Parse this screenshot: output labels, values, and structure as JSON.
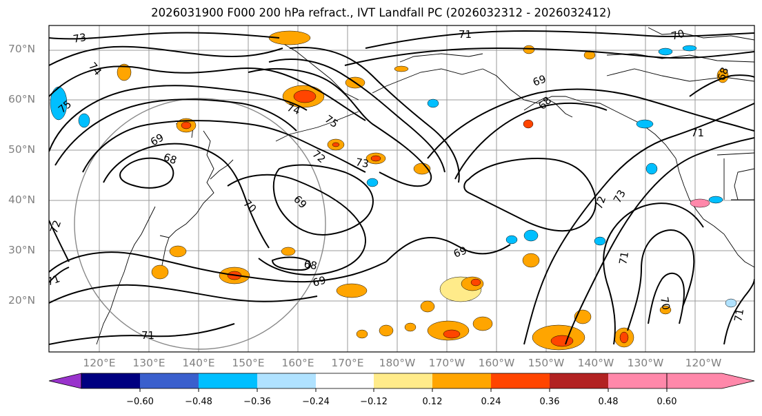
{
  "title": "2026031900 F000 200 hPa refract., IVT Landfall PC (2026032312 - 2026032412)",
  "lat_labels": [
    "70°N",
    "60°N",
    "50°N",
    "40°N",
    "30°N",
    "20°N"
  ],
  "lon_labels": [
    "120°E",
    "130°E",
    "140°E",
    "150°E",
    "160°E",
    "170°E",
    "180°W",
    "170°W",
    "160°W",
    "150°W",
    "140°W",
    "130°W",
    "120°W"
  ],
  "colorbar": {
    "ticks": [
      "−0.60",
      "−0.48",
      "−0.36",
      "−0.24",
      "−0.12",
      "0.12",
      "0.24",
      "0.36",
      "0.48",
      "0.60"
    ],
    "colors": [
      "#9933cc",
      "#000080",
      "#3a5fcd",
      "#00bfff",
      "#b0e2ff",
      "#ffffff",
      "#ffeb8a",
      "#ffa500",
      "#ff4500",
      "#b22222",
      "#ff88aa"
    ]
  },
  "contour_labels": [
    {
      "text": "73",
      "rot": -10
    },
    {
      "text": "74",
      "rot": 50
    },
    {
      "text": "75",
      "rot": -40
    },
    {
      "text": "69",
      "rot": -30
    },
    {
      "text": "68",
      "rot": 20
    },
    {
      "text": "74",
      "rot": 20
    },
    {
      "text": "75",
      "rot": 35
    },
    {
      "text": "72",
      "rot": 40
    },
    {
      "text": "73",
      "rot": 10
    },
    {
      "text": "70",
      "rot": 45
    },
    {
      "text": "69",
      "rot": 45
    },
    {
      "text": "68",
      "rot": 10
    },
    {
      "text": "69",
      "rot": -15
    },
    {
      "text": "69",
      "rot": -20
    },
    {
      "text": "71",
      "rot": 0
    },
    {
      "text": "70",
      "rot": -15
    },
    {
      "text": "69",
      "rot": -20
    },
    {
      "text": "68",
      "rot": -70
    },
    {
      "text": "68",
      "rot": -45
    },
    {
      "text": "71",
      "rot": 0
    },
    {
      "text": "72",
      "rot": -70
    },
    {
      "text": "73",
      "rot": -60
    },
    {
      "text": "71",
      "rot": -80
    },
    {
      "text": "70",
      "rot": 80
    },
    {
      "text": "71",
      "rot": -80
    },
    {
      "text": "72",
      "rot": -70
    },
    {
      "text": "71",
      "rot": -20
    },
    {
      "text": "71",
      "rot": 0
    }
  ]
}
